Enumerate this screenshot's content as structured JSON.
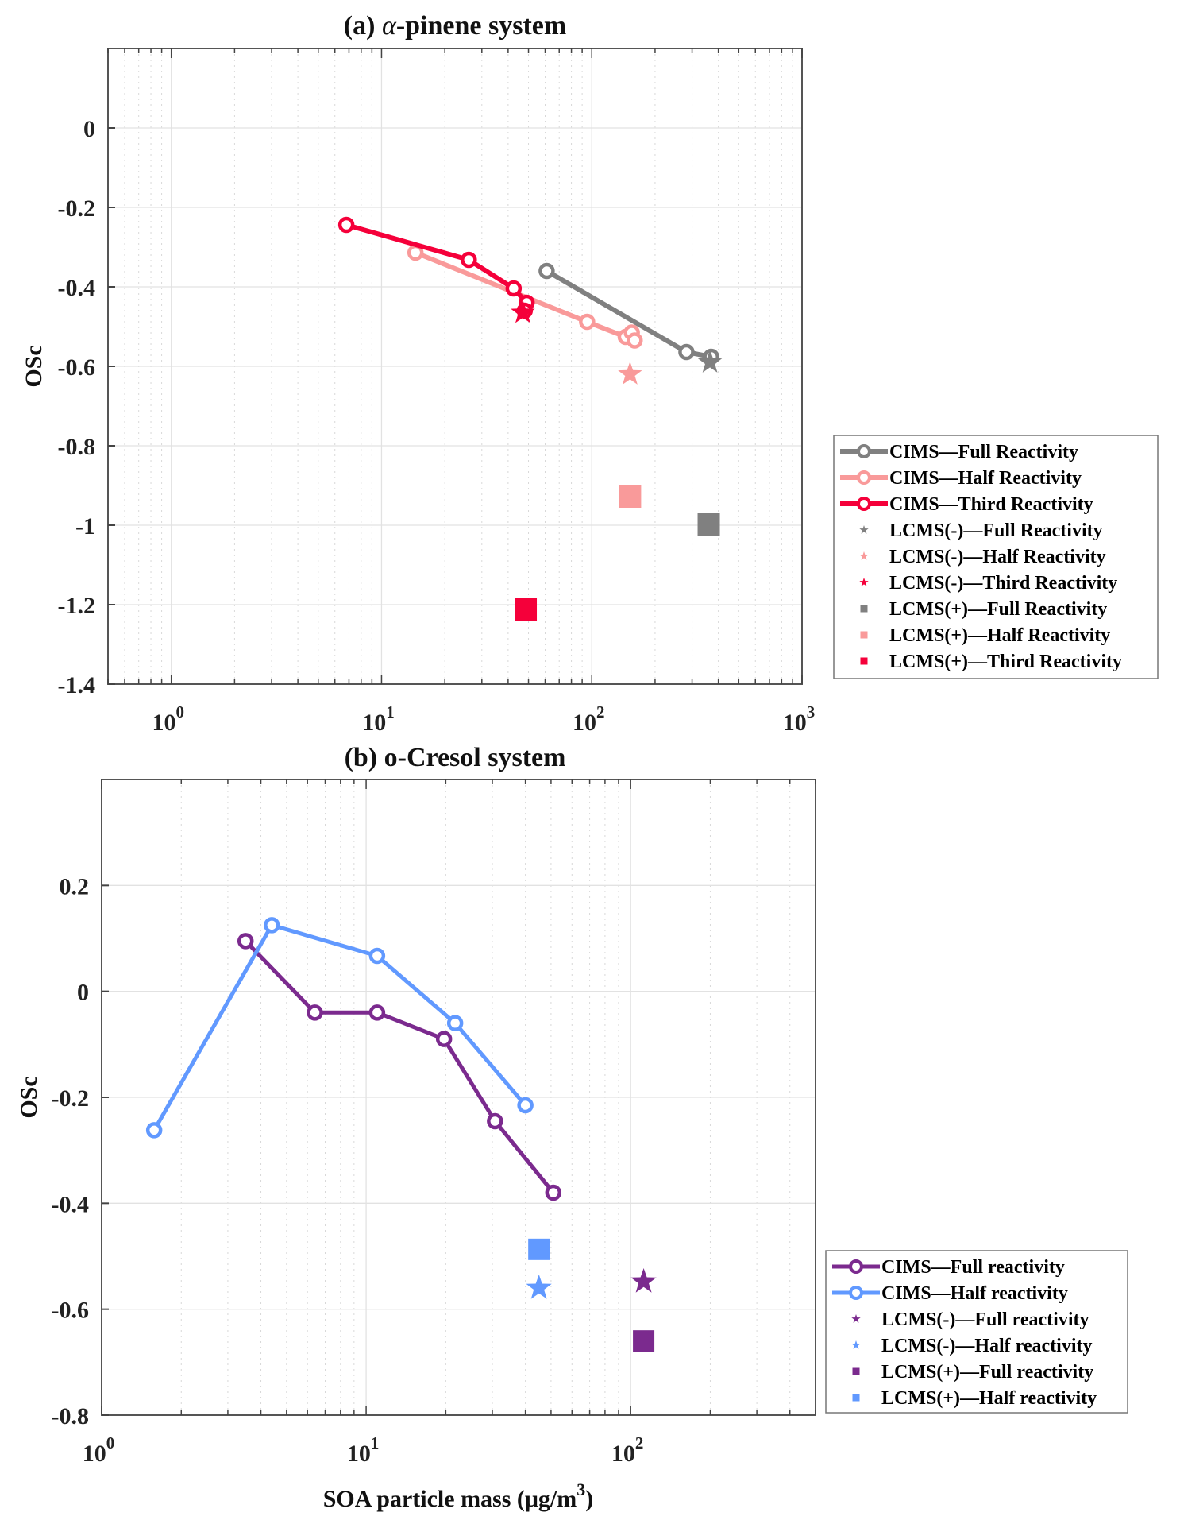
{
  "chart_data": [
    {
      "type": "line",
      "panel": "a",
      "title": "(a) α-pinene system",
      "title_prefix": "(a) ",
      "title_greek": "α",
      "title_suffix": "-pinene system",
      "xlabel": "",
      "ylabel": "OSc",
      "xscale": "log",
      "xlim": [
        0.5,
        1000
      ],
      "ylim": [
        -1.4,
        0.2
      ],
      "xticks": [
        {
          "base": "10",
          "exp": "0",
          "value": 1
        },
        {
          "base": "10",
          "exp": "1",
          "value": 10
        },
        {
          "base": "10",
          "exp": "2",
          "value": 100
        },
        {
          "base": "10",
          "exp": "3",
          "value": 1000
        }
      ],
      "yticks": [
        {
          "label": "0",
          "value": 0
        },
        {
          "label": "-0.2",
          "value": -0.2
        },
        {
          "label": "-0.4",
          "value": -0.4
        },
        {
          "label": "-0.6",
          "value": -0.6
        },
        {
          "label": "-0.8",
          "value": -0.8
        },
        {
          "label": "-1",
          "value": -1
        },
        {
          "label": "-1.2",
          "value": -1.2
        },
        {
          "label": "-1.4",
          "value": -1.4
        }
      ],
      "grid": true,
      "legend_position": "right-outside",
      "series": [
        {
          "name": "CIMS—Full Reactivity",
          "kind": "line-circle",
          "color": "#808080",
          "x": [
            61,
            282,
            370
          ],
          "y": [
            -0.36,
            -0.564,
            -0.576
          ]
        },
        {
          "name": "CIMS—Half Reactivity",
          "kind": "line-circle",
          "color": "#f99a9a",
          "x": [
            14.5,
            95,
            145,
            155,
            160
          ],
          "y": [
            -0.314,
            -0.488,
            -0.526,
            -0.515,
            -0.535
          ]
        },
        {
          "name": "CIMS—Third Reactivity",
          "kind": "line-circle",
          "color": "#f5003a",
          "x": [
            6.8,
            26,
            42.5,
            49,
            48
          ],
          "y": [
            -0.244,
            -0.332,
            -0.404,
            -0.44,
            -0.46
          ]
        },
        {
          "name": "LCMS(-)—Full Reactivity",
          "kind": "star",
          "color": "#808080",
          "x": [
            365
          ],
          "y": [
            -0.59
          ]
        },
        {
          "name": "LCMS(-)—Half Reactivity",
          "kind": "star",
          "color": "#f99a9a",
          "x": [
            152
          ],
          "y": [
            -0.62
          ]
        },
        {
          "name": "LCMS(-)—Third Reactivity",
          "kind": "star",
          "color": "#f5003a",
          "x": [
            47
          ],
          "y": [
            -0.465
          ]
        },
        {
          "name": "LCMS(+)—Full Reactivity",
          "kind": "square",
          "color": "#808080",
          "x": [
            360
          ],
          "y": [
            -0.998
          ]
        },
        {
          "name": "LCMS(+)—Half Reactivity",
          "kind": "square",
          "color": "#f99a9a",
          "x": [
            152
          ],
          "y": [
            -0.928
          ]
        },
        {
          "name": "LCMS(+)—Third Reactivity",
          "kind": "square",
          "color": "#f5003a",
          "x": [
            48.5
          ],
          "y": [
            -1.212
          ]
        }
      ]
    },
    {
      "type": "line",
      "panel": "b",
      "title": "(b) o-Cresol system",
      "xlabel": "SOA particle mass (μg/m",
      "xlabel_sup": "3",
      "xlabel_close": ")",
      "ylabel": "OSc",
      "xscale": "log",
      "xlim": [
        1,
        500
      ],
      "ylim": [
        -0.8,
        0.4
      ],
      "xticks": [
        {
          "base": "10",
          "exp": "0",
          "value": 1
        },
        {
          "base": "10",
          "exp": "1",
          "value": 10
        },
        {
          "base": "10",
          "exp": "2",
          "value": 100
        }
      ],
      "yticks": [
        {
          "label": "0.2",
          "value": 0.2
        },
        {
          "label": "0",
          "value": 0
        },
        {
          "label": "-0.2",
          "value": -0.2
        },
        {
          "label": "-0.4",
          "value": -0.4
        },
        {
          "label": "-0.6",
          "value": -0.6
        },
        {
          "label": "-0.8",
          "value": -0.8
        }
      ],
      "grid": true,
      "legend_position": "right-outside",
      "series": [
        {
          "name": "CIMS—Full reactivity",
          "kind": "line-circle",
          "color": "#7b2a8e",
          "x": [
            3.5,
            6.4,
            11,
            19.7,
            30.7,
            51
          ],
          "y": [
            0.095,
            -0.04,
            -0.04,
            -0.09,
            -0.245,
            -0.38
          ]
        },
        {
          "name": "CIMS—Half reactivity",
          "kind": "line-circle",
          "color": "#6199ff",
          "x": [
            1.58,
            4.4,
            11,
            21.7,
            40
          ],
          "y": [
            -0.262,
            0.125,
            0.067,
            -0.06,
            -0.215
          ]
        },
        {
          "name": "LCMS(-)—Full reactivity",
          "kind": "star",
          "color": "#7b2a8e",
          "x": [
            112
          ],
          "y": [
            -0.548
          ]
        },
        {
          "name": "LCMS(-)—Half reactivity",
          "kind": "star",
          "color": "#6199ff",
          "x": [
            45
          ],
          "y": [
            -0.56
          ]
        },
        {
          "name": "LCMS(+)—Full reactivity",
          "kind": "square",
          "color": "#7b2a8e",
          "x": [
            112
          ],
          "y": [
            -0.66
          ]
        },
        {
          "name": "LCMS(+)—Half reactivity",
          "kind": "square",
          "color": "#6199ff",
          "x": [
            45
          ],
          "y": [
            -0.487
          ]
        }
      ]
    }
  ]
}
